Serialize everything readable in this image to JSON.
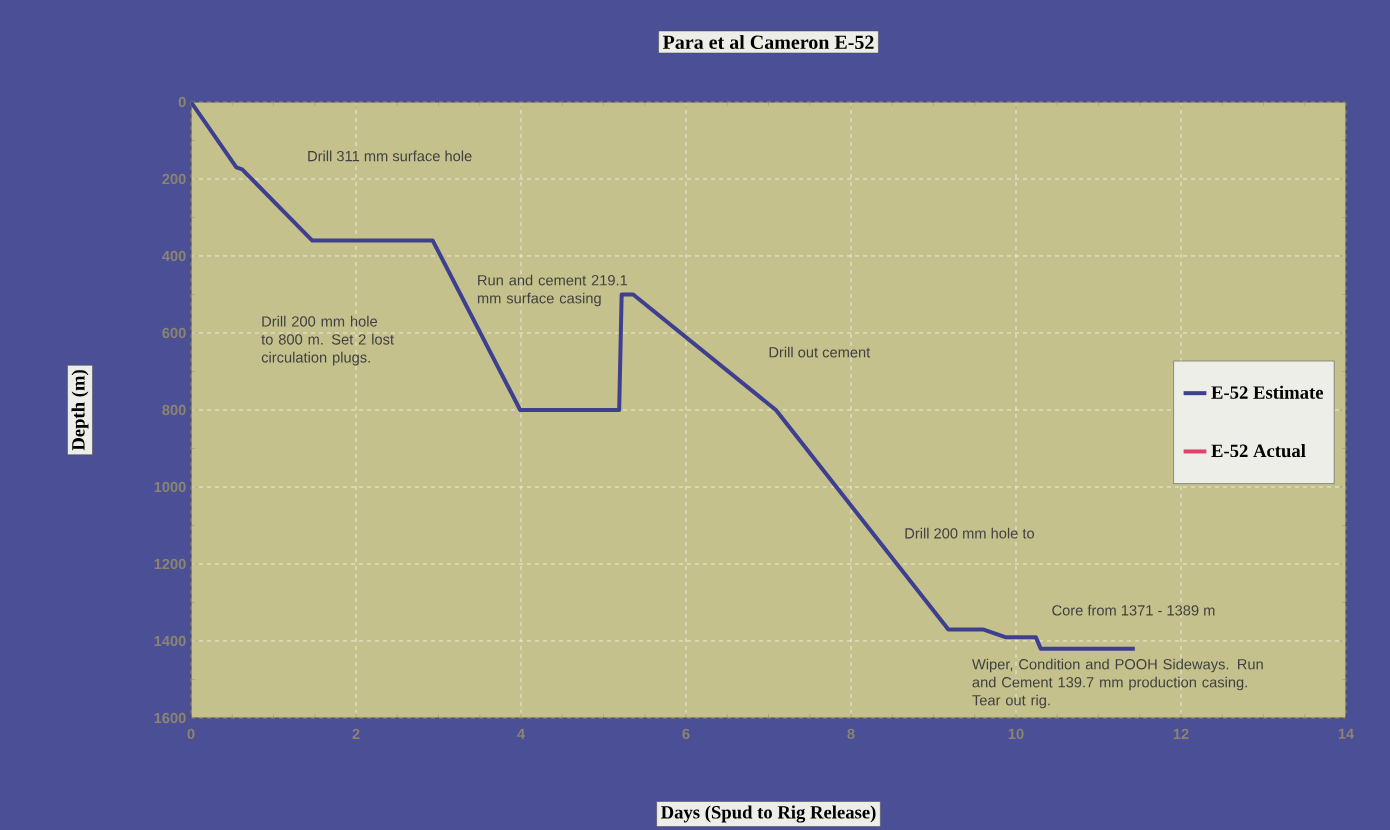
{
  "chart_data": {
    "type": "line",
    "title": "Para et al Cameron E-52",
    "xlabel": "Days (Spud to Rig Release)",
    "ylabel": "Depth (m)",
    "xlim": [
      0,
      14
    ],
    "xticks": [
      0,
      2,
      4,
      6,
      8,
      10,
      12,
      14
    ],
    "ylim": [
      1600,
      0
    ],
    "yticks": [
      0,
      200,
      400,
      600,
      800,
      1000,
      1200,
      1400,
      1600
    ],
    "grid": true,
    "legend": "right",
    "marker": "none",
    "line_style": "solid",
    "series": [
      {
        "name": "E-52 Estimate",
        "color": "#3f3f8f",
        "x": [
          0,
          0.55,
          0.62,
          1.47,
          2.93,
          3.99,
          5.19,
          5.22,
          5.36,
          7.09,
          9.18,
          9.6,
          9.87,
          10.24,
          10.3,
          11.44
        ],
        "values": [
          0,
          170,
          175,
          360,
          360,
          800,
          800,
          500,
          500,
          800,
          1370,
          1370,
          1390,
          1390,
          1420,
          1420
        ]
      },
      {
        "name": "E-52 Actual",
        "color": "#e0406a"
      }
    ],
    "annotations": [
      "Drill 311 mm surface hole",
      "Run and cement 219.1 mm surface casing",
      "Drill 200 mm hole to 800 m.  Set 2 lost circulation plugs.",
      "Drill out cement",
      "Drill 200 mm hole to",
      "Core from 1371 - 1389 m",
      "Wiper, Condition and POOH Sideways.  Run and Cement 139.7 mm production casing. Tear out rig."
    ]
  }
}
